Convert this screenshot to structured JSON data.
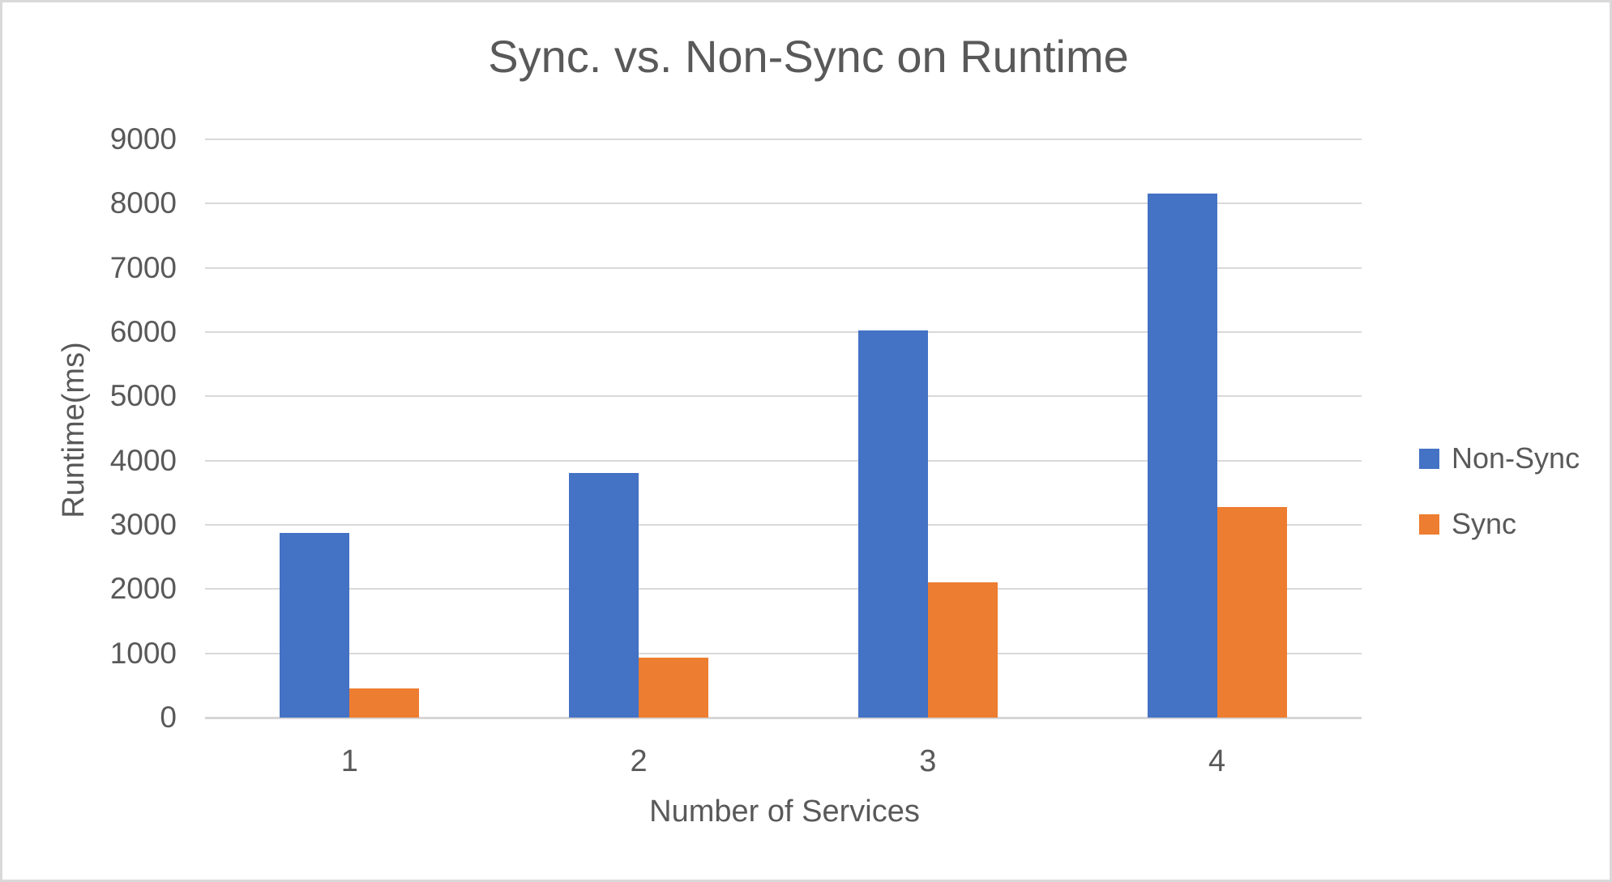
{
  "chart": {
    "title": "Sync. vs. Non-Sync on Runtime"
  },
  "colors": {
    "non_sync": "#4472C4",
    "sync": "#ED7D31",
    "gridline": "#D9D9D9",
    "text": "#595959"
  },
  "chart_data": {
    "type": "bar",
    "title": "Sync. vs. Non-Sync on Runtime",
    "xlabel": "Number of Services",
    "ylabel": "Runtime(ms)",
    "categories": [
      "1",
      "2",
      "3",
      "4"
    ],
    "series": [
      {
        "name": "Non-Sync",
        "color": "#4472C4",
        "values": [
          2880,
          3810,
          6020,
          8160
        ]
      },
      {
        "name": "Sync",
        "color": "#ED7D31",
        "values": [
          460,
          930,
          2100,
          3280
        ]
      }
    ],
    "ylim": [
      0,
      9000
    ],
    "ytick_step": 1000,
    "yticks": [
      0,
      1000,
      2000,
      3000,
      4000,
      5000,
      6000,
      7000,
      8000,
      9000
    ],
    "grid": true,
    "legend_position": "right"
  }
}
